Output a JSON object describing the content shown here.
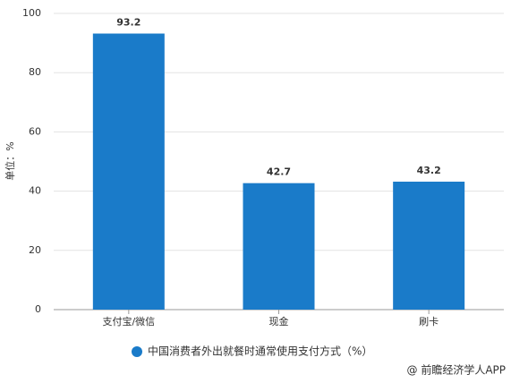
{
  "chart_data": {
    "type": "bar",
    "categories": [
      "支付宝/微信",
      "现金",
      "刷卡"
    ],
    "series": [
      {
        "name": "中国消费者外出就餐时通常使用支付方式（%）",
        "color": "#1a7bc9",
        "values": [
          93.2,
          42.7,
          43.2
        ]
      }
    ],
    "ylabel": "单位：%",
    "ylim": [
      0,
      100
    ],
    "yticks": [
      0,
      20,
      40,
      60,
      80,
      100
    ],
    "grid": true,
    "legend": "bottom",
    "source": "@ 前瞻经济学人APP"
  }
}
